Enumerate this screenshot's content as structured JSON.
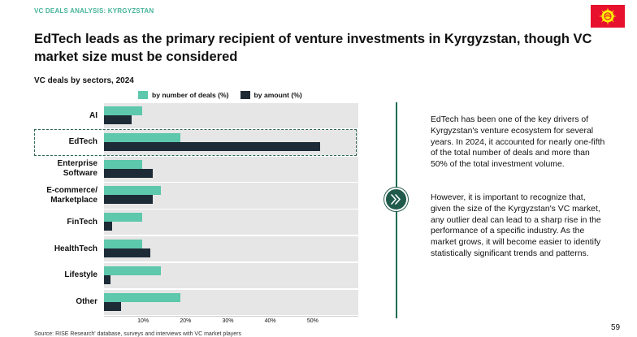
{
  "header": {
    "kicker": "VC DEALS ANALYSIS: KYRGYZSTAN",
    "title": "EdTech leads as the primary recipient of venture investments in Kyrgyzstan, though VC market size must be considered",
    "flag_colors": {
      "field": "#e8112d",
      "sun": "#ffef00"
    }
  },
  "chart_data": {
    "type": "bar",
    "orientation": "horizontal",
    "title": "VC deals by sectors, 2024",
    "categories": [
      "AI",
      "EdTech",
      "Enterprise Software",
      "E-commerce/ Marketplace",
      "FinTech",
      "HealthTech",
      "Lifestyle",
      "Other"
    ],
    "series": [
      {
        "name": "by number of deals (%)",
        "color": "#5dc8ab",
        "values": [
          9,
          18,
          9,
          13.5,
          9,
          9,
          13.5,
          18
        ]
      },
      {
        "name": "by amount (%)",
        "color": "#1d2b36",
        "values": [
          6.5,
          51,
          11.5,
          11.5,
          2,
          11,
          1.5,
          4
        ]
      }
    ],
    "xticks": [
      "10%",
      "20%",
      "30%",
      "40%",
      "50%"
    ],
    "xlim": [
      0,
      60
    ],
    "highlighted_category": "EdTech",
    "legend_position": "top"
  },
  "commentary": {
    "p1": "EdTech has been one of the key drivers of Kyrgyzstan's venture ecosystem for several years. In 2024, it accounted for nearly one-fifth of the total number of deals and more than 50% of the total investment volume.",
    "p2": "However, it is important to recognize that, given the size of the Kyrgyzstan's VC market, any outlier deal can lead to a sharp rise in the performance of a specific industry. As the market grows, it will become easier to identify statistically significant trends and patterns."
  },
  "footer": {
    "source": "Source: RISE Research' database, surveys and interviews with VC market players",
    "page_number": "59"
  }
}
